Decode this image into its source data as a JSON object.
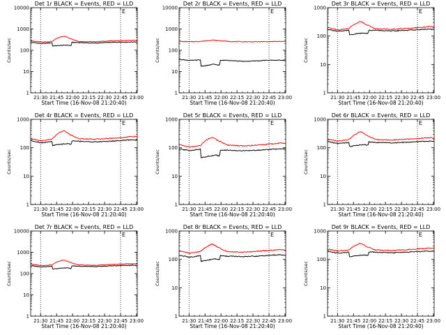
{
  "chart_data": [
    {
      "type": "line",
      "title": "Det 1r BLACK = Events, RED = LLD",
      "xlabel": "Start Time (16-Nov-08 21:20:40)",
      "ylabel": "Counts/sec",
      "yscale": "log",
      "ylim": [
        1,
        10000
      ],
      "yticks": [
        "1",
        "10",
        "100",
        "1000",
        "10000"
      ],
      "xticks": [
        "21:30",
        "21:45",
        "22:00",
        "22:15",
        "22:30",
        "22:45",
        "23:00"
      ],
      "xlim_minutes": [
        0,
        100
      ],
      "vlines_minutes": [
        9.33,
        84.33
      ],
      "grid": false,
      "legend": "none",
      "marker": "E",
      "series": [
        {
          "name": "RED",
          "color": "#ff0000",
          "x": [
            0,
            10,
            20,
            25,
            31,
            37,
            45,
            60,
            75,
            85,
            95,
            100
          ],
          "y": [
            280,
            240,
            260,
            370,
            470,
            360,
            260,
            250,
            275,
            280,
            290,
            290
          ]
        },
        {
          "name": "BLACK",
          "color": "#000000",
          "x": [
            0,
            10,
            20,
            20.5,
            30,
            35,
            38,
            38.5,
            45,
            60,
            75,
            85,
            95,
            100
          ],
          "y": [
            240,
            205,
            225,
            160,
            170,
            175,
            160,
            235,
            230,
            215,
            235,
            240,
            245,
            245
          ]
        }
      ]
    },
    {
      "type": "line",
      "title": "Det 2r BLACK = Events, RED = LLD",
      "xlabel": "Start Time (16-Nov-08 21:20:40)",
      "ylabel": "Counts/sec",
      "yscale": "log",
      "ylim": [
        1,
        10000
      ],
      "yticks": [
        "1",
        "10",
        "100",
        "1000",
        "10000"
      ],
      "xticks": [
        "21:30",
        "21:45",
        "22:00",
        "22:15",
        "22:30",
        "22:45",
        "23:00"
      ],
      "xlim_minutes": [
        0,
        100
      ],
      "vlines_minutes": [
        9.33,
        84.33
      ],
      "grid": false,
      "legend": "none",
      "marker": "E",
      "series": [
        {
          "name": "RED",
          "color": "#ff0000",
          "x": [
            0,
            10,
            20,
            31,
            40,
            50,
            70,
            85,
            100
          ],
          "y": [
            260,
            250,
            260,
            300,
            275,
            255,
            250,
            255,
            260
          ]
        },
        {
          "name": "BLACK",
          "color": "#000000",
          "x": [
            0,
            10,
            20,
            20.5,
            26,
            32,
            38,
            38.5,
            45,
            60,
            75,
            85,
            100
          ],
          "y": [
            38,
            33,
            35,
            18,
            19,
            22,
            20,
            33,
            34,
            30,
            32,
            34,
            34
          ]
        }
      ]
    },
    {
      "type": "line",
      "title": "Det 3r BLACK = Events, RED = LLD",
      "xlabel": "Start Time (16-Nov-08 21:20:40)",
      "ylabel": "Counts/sec",
      "yscale": "log",
      "ylim": [
        1,
        1000
      ],
      "yticks": [
        "1",
        "10",
        "100",
        "1000"
      ],
      "xticks": [
        "21:30",
        "21:45",
        "22:00",
        "22:15",
        "22:30",
        "22:45",
        "23:00"
      ],
      "xlim_minutes": [
        0,
        100
      ],
      "vlines_minutes": [
        9.33,
        84.33
      ],
      "grid": false,
      "legend": "none",
      "marker": "E",
      "series": [
        {
          "name": "RED",
          "color": "#ff0000",
          "x": [
            0,
            10,
            20,
            25,
            31,
            37,
            45,
            60,
            75,
            85,
            95,
            100
          ],
          "y": [
            200,
            165,
            185,
            260,
            330,
            250,
            180,
            175,
            185,
            200,
            215,
            210
          ]
        },
        {
          "name": "BLACK",
          "color": "#000000",
          "x": [
            0,
            10,
            20,
            20.5,
            30,
            35,
            38,
            38.5,
            45,
            60,
            75,
            85,
            95,
            100
          ],
          "y": [
            175,
            145,
            160,
            110,
            125,
            130,
            120,
            160,
            160,
            150,
            160,
            170,
            175,
            170
          ]
        }
      ]
    },
    {
      "type": "line",
      "title": "Det 4r BLACK = Events, RED = LLD",
      "xlabel": "Start Time (16-Nov-08 21:20:40)",
      "ylabel": "Counts/sec",
      "yscale": "log",
      "ylim": [
        1,
        1000
      ],
      "yticks": [
        "1",
        "10",
        "100",
        "1000"
      ],
      "xticks": [
        "21:30",
        "21:45",
        "22:00",
        "22:15",
        "22:30",
        "22:45",
        "23:00"
      ],
      "xlim_minutes": [
        0,
        100
      ],
      "vlines_minutes": [
        9.33,
        84.33
      ],
      "grid": false,
      "legend": "none",
      "marker": "E",
      "series": [
        {
          "name": "RED",
          "color": "#ff0000",
          "x": [
            0,
            10,
            20,
            25,
            31,
            37,
            45,
            60,
            75,
            85,
            95,
            100
          ],
          "y": [
            210,
            175,
            200,
            310,
            400,
            290,
            210,
            200,
            215,
            225,
            250,
            245
          ]
        },
        {
          "name": "BLACK",
          "color": "#000000",
          "x": [
            0,
            10,
            20,
            20.5,
            30,
            35,
            38,
            38.5,
            45,
            60,
            75,
            85,
            95,
            100
          ],
          "y": [
            180,
            150,
            165,
            120,
            135,
            140,
            130,
            175,
            170,
            160,
            170,
            180,
            190,
            185
          ]
        }
      ]
    },
    {
      "type": "line",
      "title": "Det 5r BLACK = Events, RED = LLD",
      "xlabel": "Start Time (16-Nov-08 21:20:40)",
      "ylabel": "Counts/sec",
      "yscale": "log",
      "ylim": [
        1,
        1000
      ],
      "yticks": [
        "1",
        "10",
        "100",
        "1000"
      ],
      "xticks": [
        "21:30",
        "21:45",
        "22:00",
        "22:15",
        "22:30",
        "22:45",
        "23:00"
      ],
      "xlim_minutes": [
        0,
        100
      ],
      "vlines_minutes": [
        9.33,
        84.33
      ],
      "grid": false,
      "legend": "none",
      "marker": "E",
      "series": [
        {
          "name": "RED",
          "color": "#ff0000",
          "x": [
            0,
            10,
            20,
            25,
            31,
            37,
            45,
            60,
            75,
            85,
            95,
            100
          ],
          "y": [
            130,
            105,
            120,
            180,
            240,
            175,
            125,
            115,
            125,
            135,
            145,
            145
          ]
        },
        {
          "name": "BLACK",
          "color": "#000000",
          "x": [
            0,
            10,
            20,
            20.5,
            30,
            35,
            38,
            38.5,
            45,
            60,
            75,
            85,
            95,
            100
          ],
          "y": [
            90,
            80,
            88,
            45,
            52,
            55,
            50,
            80,
            82,
            78,
            82,
            88,
            90,
            90
          ]
        }
      ]
    },
    {
      "type": "line",
      "title": "Det 6r BLACK = Events, RED = LLD",
      "xlabel": "Start Time (16-Nov-08 21:20:40)",
      "ylabel": "Counts/sec",
      "yscale": "log",
      "ylim": [
        1,
        1000
      ],
      "yticks": [
        "1",
        "10",
        "100",
        "1000"
      ],
      "xticks": [
        "21:30",
        "21:45",
        "22:00",
        "22:15",
        "22:30",
        "22:45",
        "23:00"
      ],
      "xlim_minutes": [
        0,
        100
      ],
      "vlines_minutes": [
        9.33,
        84.33
      ],
      "grid": false,
      "legend": "none",
      "marker": "E",
      "series": [
        {
          "name": "RED",
          "color": "#ff0000",
          "x": [
            0,
            10,
            20,
            25,
            31,
            37,
            45,
            60,
            75,
            85,
            95,
            100
          ],
          "y": [
            200,
            170,
            195,
            280,
            370,
            270,
            195,
            185,
            200,
            210,
            225,
            220
          ]
        },
        {
          "name": "BLACK",
          "color": "#000000",
          "x": [
            0,
            10,
            20,
            20.5,
            30,
            35,
            38,
            38.5,
            45,
            60,
            75,
            85,
            95,
            100
          ],
          "y": [
            165,
            140,
            155,
            110,
            125,
            130,
            120,
            160,
            155,
            148,
            155,
            165,
            170,
            168
          ]
        }
      ]
    },
    {
      "type": "line",
      "title": "Det 7r BLACK = Events, RED = LLD",
      "xlabel": "Start Time (16-Nov-08 21:20:40)",
      "ylabel": "Counts/sec",
      "yscale": "log",
      "ylim": [
        1,
        10000
      ],
      "yticks": [
        "1",
        "10",
        "100",
        "1000",
        "10000"
      ],
      "xticks": [
        "21:30",
        "21:45",
        "22:00",
        "22:15",
        "22:30",
        "22:45",
        "23:00"
      ],
      "xlim_minutes": [
        0,
        100
      ],
      "vlines_minutes": [
        9.33,
        84.33
      ],
      "grid": false,
      "legend": "none",
      "marker": "E",
      "series": [
        {
          "name": "RED",
          "color": "#ff0000",
          "x": [
            0,
            10,
            20,
            25,
            31,
            37,
            45,
            60,
            75,
            85,
            95,
            100
          ],
          "y": [
            280,
            235,
            255,
            360,
            440,
            340,
            255,
            245,
            265,
            280,
            290,
            285
          ]
        },
        {
          "name": "BLACK",
          "color": "#000000",
          "x": [
            0,
            10,
            20,
            20.5,
            30,
            35,
            38,
            38.5,
            45,
            60,
            75,
            85,
            95,
            100
          ],
          "y": [
            240,
            200,
            220,
            165,
            180,
            185,
            170,
            230,
            225,
            210,
            230,
            240,
            245,
            240
          ]
        }
      ]
    },
    {
      "type": "line",
      "title": "Det 8r BLACK = Events, RED = LLD",
      "xlabel": "Start Time (16-Nov-08 21:20:40)",
      "ylabel": "Counts/sec",
      "yscale": "log",
      "ylim": [
        1,
        1000
      ],
      "yticks": [
        "1",
        "10",
        "100",
        "1000"
      ],
      "xticks": [
        "21:30",
        "21:45",
        "22:00",
        "22:15",
        "22:30",
        "22:45",
        "23:00"
      ],
      "xlim_minutes": [
        0,
        100
      ],
      "vlines_minutes": [
        9.33,
        84.33
      ],
      "grid": false,
      "legend": "none",
      "marker": "E",
      "series": [
        {
          "name": "RED",
          "color": "#ff0000",
          "x": [
            0,
            10,
            20,
            25,
            31,
            37,
            45,
            60,
            75,
            85,
            95,
            100
          ],
          "y": [
            200,
            165,
            190,
            270,
            350,
            260,
            190,
            180,
            195,
            205,
            220,
            215
          ]
        },
        {
          "name": "BLACK",
          "color": "#000000",
          "x": [
            0,
            10,
            20,
            20.5,
            30,
            35,
            38,
            38.5,
            45,
            60,
            75,
            85,
            95,
            100
          ],
          "y": [
            140,
            120,
            135,
            85,
            100,
            105,
            95,
            135,
            130,
            125,
            130,
            140,
            145,
            142
          ]
        }
      ]
    },
    {
      "type": "line",
      "title": "Det 9r BLACK = Events, RED = LLD",
      "xlabel": "Start Time (16-Nov-08 21:20:40)",
      "ylabel": "Counts/sec",
      "yscale": "log",
      "ylim": [
        1,
        1000
      ],
      "yticks": [
        "1",
        "10",
        "100",
        "1000"
      ],
      "xticks": [
        "21:30",
        "21:45",
        "22:00",
        "22:15",
        "22:30",
        "22:45",
        "23:00"
      ],
      "xlim_minutes": [
        0,
        100
      ],
      "vlines_minutes": [
        9.33,
        84.33
      ],
      "grid": false,
      "legend": "none",
      "marker": "E",
      "series": [
        {
          "name": "RED",
          "color": "#ff0000",
          "x": [
            0,
            10,
            20,
            25,
            31,
            37,
            45,
            60,
            75,
            85,
            95,
            100
          ],
          "y": [
            230,
            195,
            215,
            300,
            370,
            280,
            215,
            205,
            220,
            235,
            250,
            245
          ]
        },
        {
          "name": "BLACK",
          "color": "#000000",
          "x": [
            0,
            10,
            20,
            20.5,
            30,
            35,
            38,
            38.5,
            45,
            60,
            75,
            85,
            95,
            100
          ],
          "y": [
            195,
            165,
            180,
            125,
            140,
            145,
            135,
            185,
            180,
            170,
            180,
            190,
            195,
            192
          ]
        }
      ]
    }
  ]
}
